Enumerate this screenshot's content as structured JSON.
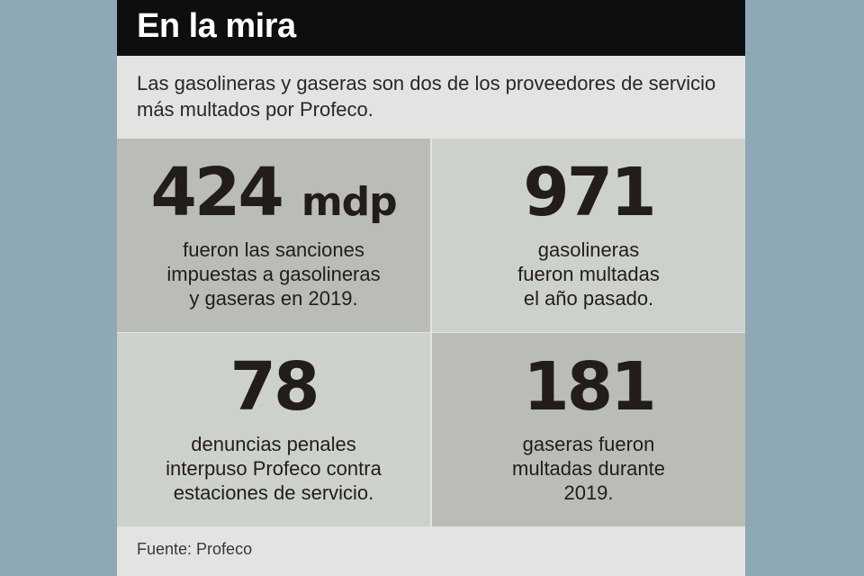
{
  "header": {
    "title": "En la mira"
  },
  "intro": "Las gasolineras y gaseras son dos de los proveedores de servicio más multados por Profeco.",
  "stats": [
    {
      "value": "424",
      "unit": "mdp",
      "description": "fueron las sanciones\nimpuestas a gasolineras\ny gaseras en 2019."
    },
    {
      "value": "971",
      "unit": "",
      "description": "gasolineras\nfueron multadas\nel año pasado."
    },
    {
      "value": "78",
      "unit": "",
      "description": "denuncias penales\ninterpuso Profeco contra\nestaciones de servicio."
    },
    {
      "value": "181",
      "unit": "",
      "description": "gaseras fueron\nmultadas durante\n2019."
    }
  ],
  "source": "Fuente: Profeco",
  "colors": {
    "background": "#8fa8b6",
    "card": "#e3e4e1",
    "header": "#0d0f0e",
    "cell_dark": "#b9bdb5",
    "cell_light": "#cdd1cc",
    "text": "#231d19"
  }
}
